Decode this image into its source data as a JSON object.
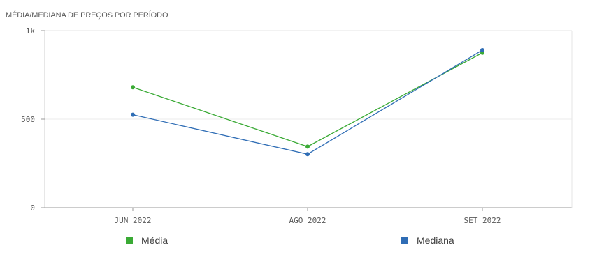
{
  "chart_data": {
    "type": "line",
    "title": "MÉDIA/MEDIANA DE PREÇOS POR PERÍODO",
    "categories": [
      "JUN 2022",
      "AGO 2022",
      "SET 2022"
    ],
    "y_ticks": [
      "0",
      "500",
      "1k"
    ],
    "ylim": [
      0,
      1000
    ],
    "grid": true,
    "legend_position": "bottom",
    "series": [
      {
        "name": "Média",
        "color": "#3aaa35",
        "values": [
          680,
          345,
          875
        ]
      },
      {
        "name": "Mediana",
        "color": "#2f6db5",
        "values": [
          525,
          302,
          890
        ]
      }
    ]
  }
}
